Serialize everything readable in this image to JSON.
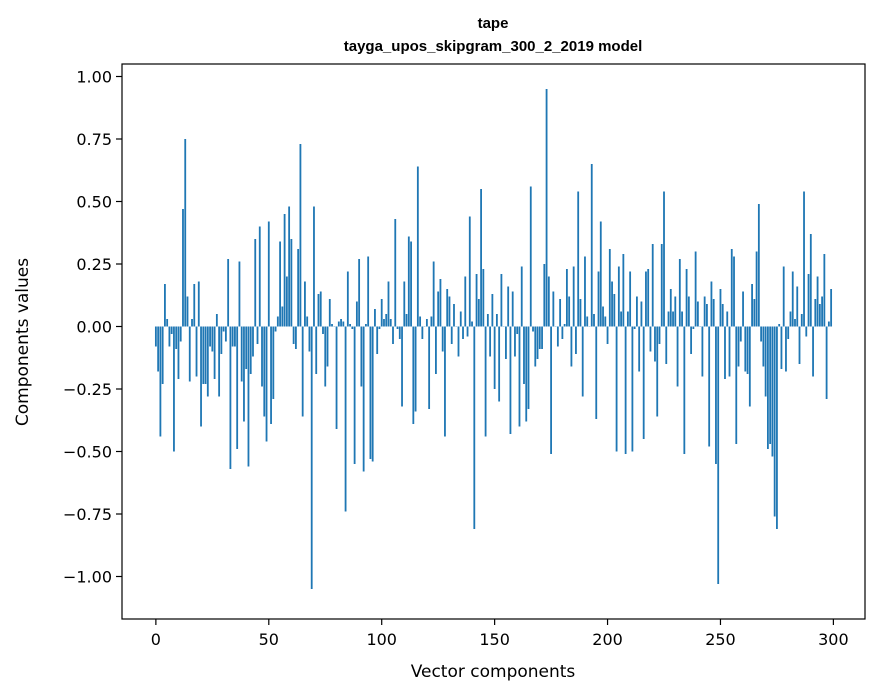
{
  "chart_data": {
    "type": "bar",
    "title": "tape",
    "subtitle": "tayga_upos_skipgram_300_2_2019 model",
    "xlabel": "Vector components",
    "ylabel": "Components values",
    "xlim": [
      -15,
      314
    ],
    "ylim": [
      -1.17,
      1.05
    ],
    "xticks": [
      0,
      50,
      100,
      150,
      200,
      250,
      300
    ],
    "xtick_labels": [
      "0",
      "50",
      "100",
      "150",
      "200",
      "250",
      "300"
    ],
    "yticks": [
      1.0,
      0.75,
      0.5,
      0.25,
      0.0,
      -0.25,
      -0.5,
      -0.75,
      -1.0
    ],
    "ytick_labels": [
      "1.00",
      "0.75",
      "0.50",
      "0.25",
      "0.00",
      "−0.25",
      "−0.50",
      "−0.75",
      "−1.00"
    ],
    "grid": false,
    "bar_color": "#1f77b4",
    "values": [
      -0.08,
      -0.18,
      -0.44,
      -0.23,
      0.17,
      0.03,
      -0.08,
      -0.03,
      -0.5,
      -0.09,
      -0.21,
      -0.06,
      0.47,
      0.75,
      0.12,
      -0.22,
      0.03,
      0.17,
      -0.2,
      0.18,
      -0.4,
      -0.23,
      -0.23,
      -0.28,
      -0.08,
      -0.1,
      -0.21,
      0.05,
      -0.28,
      -0.11,
      -0.02,
      -0.06,
      0.27,
      -0.57,
      -0.08,
      -0.08,
      -0.49,
      0.26,
      -0.22,
      -0.38,
      -0.17,
      -0.56,
      -0.19,
      -0.12,
      0.35,
      -0.07,
      0.4,
      -0.24,
      -0.36,
      -0.46,
      0.42,
      -0.39,
      -0.29,
      -0.02,
      0.04,
      0.34,
      0.08,
      0.45,
      0.2,
      0.48,
      0.35,
      -0.07,
      -0.09,
      0.31,
      0.73,
      -0.36,
      0.18,
      0.04,
      -0.1,
      -1.05,
      0.48,
      -0.19,
      0.13,
      0.14,
      -0.03,
      -0.24,
      -0.16,
      0.11,
      0.01,
      0.0,
      -0.41,
      0.02,
      0.03,
      0.02,
      -0.74,
      0.22,
      0.01,
      -0.01,
      -0.55,
      0.1,
      0.27,
      -0.24,
      -0.58,
      0.01,
      0.28,
      -0.53,
      -0.54,
      0.07,
      -0.11,
      -0.01,
      0.11,
      0.03,
      0.05,
      0.18,
      0.03,
      -0.07,
      0.43,
      -0.01,
      -0.05,
      -0.32,
      0.18,
      0.05,
      0.36,
      0.34,
      -0.39,
      -0.34,
      0.64,
      0.04,
      -0.05,
      0.0,
      0.03,
      -0.33,
      0.04,
      0.26,
      -0.19,
      0.14,
      0.19,
      -0.1,
      -0.44,
      0.15,
      0.12,
      -0.07,
      0.09,
      0.0,
      -0.12,
      0.06,
      -0.05,
      0.2,
      -0.04,
      0.44,
      0.02,
      -0.81,
      0.21,
      0.11,
      0.55,
      0.23,
      -0.44,
      0.05,
      -0.12,
      0.13,
      -0.25,
      0.05,
      -0.3,
      0.21,
      0.0,
      -0.13,
      0.16,
      -0.43,
      0.14,
      -0.12,
      -0.03,
      -0.4,
      0.24,
      -0.23,
      -0.38,
      -0.33,
      0.56,
      -0.02,
      -0.16,
      -0.13,
      -0.09,
      -0.09,
      0.25,
      0.95,
      0.2,
      -0.51,
      0.14,
      0.0,
      -0.08,
      0.11,
      -0.05,
      0.01,
      0.23,
      0.12,
      -0.16,
      0.24,
      -0.11,
      0.54,
      0.11,
      -0.28,
      0.28,
      0.04,
      0.0,
      0.65,
      0.05,
      -0.37,
      0.22,
      0.42,
      0.08,
      0.04,
      -0.07,
      0.31,
      0.18,
      0.13,
      -0.5,
      0.24,
      0.06,
      0.29,
      -0.51,
      0.06,
      0.22,
      -0.5,
      -0.01,
      0.12,
      -0.18,
      0.1,
      -0.45,
      0.22,
      0.23,
      -0.1,
      0.33,
      -0.14,
      -0.36,
      -0.07,
      0.33,
      0.54,
      -0.15,
      0.06,
      0.15,
      0.06,
      0.12,
      -0.24,
      0.27,
      0.06,
      -0.51,
      0.23,
      0.12,
      -0.11,
      -0.01,
      0.3,
      0.1,
      0.0,
      -0.2,
      0.12,
      0.09,
      -0.48,
      0.18,
      0.11,
      -0.55,
      -1.03,
      0.15,
      0.09,
      -0.21,
      0.06,
      -0.2,
      0.31,
      0.28,
      -0.47,
      -0.16,
      -0.06,
      0.14,
      -0.18,
      -0.19,
      -0.32,
      0.17,
      0.11,
      0.3,
      0.49,
      -0.06,
      -0.16,
      -0.28,
      -0.49,
      -0.47,
      -0.52,
      -0.76,
      -0.81,
      0.01,
      -0.17,
      0.24,
      -0.18,
      -0.05,
      0.06,
      0.22,
      0.03,
      0.16,
      -0.15,
      0.05,
      0.54,
      -0.04,
      0.21,
      0.37,
      -0.2,
      0.11,
      0.2,
      0.09,
      0.12,
      0.29,
      -0.29,
      0.02,
      0.15
    ]
  }
}
